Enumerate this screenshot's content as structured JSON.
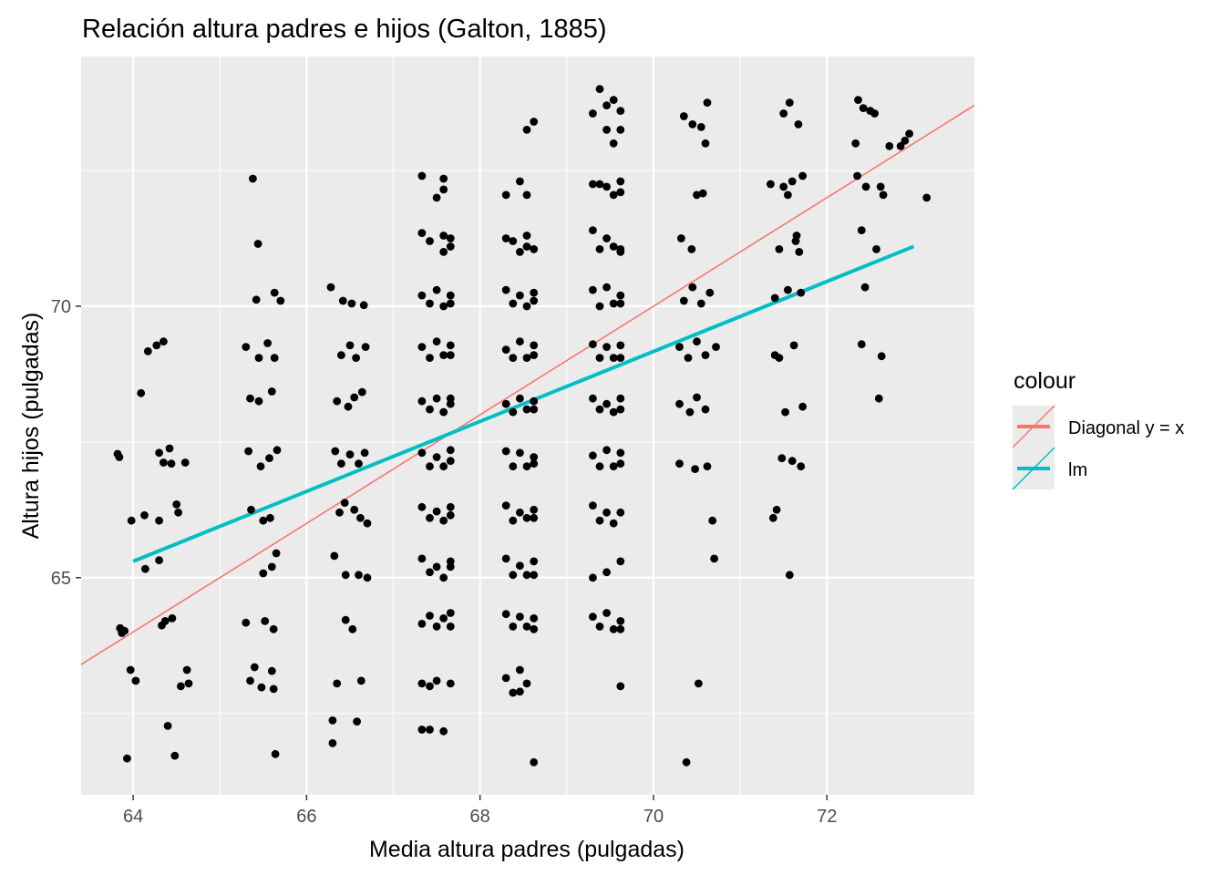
{
  "chart_data": {
    "type": "scatter",
    "title": "Relación altura padres e hijos (Galton, 1885)",
    "xlabel": "Media altura padres (pulgadas)",
    "ylabel": "Altura hijos (pulgadas)",
    "xlim": [
      63.4,
      73.7
    ],
    "ylim": [
      61.0,
      74.6
    ],
    "xticks": [
      64,
      66,
      68,
      70,
      72
    ],
    "yticks": [
      65,
      70
    ],
    "grid": true,
    "background": "#ebebeb",
    "point_color": "#000000",
    "legend": {
      "title": "colour",
      "position": "right",
      "entries": [
        {
          "label": "Diagonal y = x",
          "color": "#f8766d"
        },
        {
          "label": "lm",
          "color": "#00bfc4"
        }
      ]
    },
    "lines": [
      {
        "name": "Diagonal y = x",
        "color": "#f8766d",
        "x": [
          63.4,
          73.7
        ],
        "y": [
          63.4,
          73.7
        ]
      },
      {
        "name": "lm",
        "color": "#00bfc4",
        "x": [
          64.0,
          73.0
        ],
        "y": [
          65.3,
          71.1
        ]
      }
    ],
    "points": [
      [
        63.82,
        67.28
      ],
      [
        63.84,
        67.22
      ],
      [
        63.93,
        61.67
      ],
      [
        63.98,
        66.05
      ],
      [
        64.03,
        63.1
      ],
      [
        63.97,
        63.3
      ],
      [
        63.85,
        64.07
      ],
      [
        63.87,
        63.98
      ],
      [
        63.9,
        64.02
      ],
      [
        64.09,
        68.4
      ],
      [
        64.13,
        66.15
      ],
      [
        64.14,
        65.16
      ],
      [
        64.17,
        69.17
      ],
      [
        64.27,
        69.28
      ],
      [
        64.3,
        66.05
      ],
      [
        64.35,
        69.35
      ],
      [
        64.33,
        64.12
      ],
      [
        64.3,
        65.32
      ],
      [
        64.3,
        67.3
      ],
      [
        64.37,
        64.2
      ],
      [
        64.35,
        67.12
      ],
      [
        64.4,
        62.27
      ],
      [
        64.42,
        67.38
      ],
      [
        64.44,
        67.1
      ],
      [
        64.45,
        64.25
      ],
      [
        64.48,
        61.72
      ],
      [
        64.5,
        66.35
      ],
      [
        64.52,
        66.2
      ],
      [
        64.55,
        63.0
      ],
      [
        64.6,
        67.12
      ],
      [
        64.62,
        63.3
      ],
      [
        64.64,
        63.05
      ],
      [
        65.38,
        72.35
      ],
      [
        65.3,
        69.25
      ],
      [
        65.35,
        68.3
      ],
      [
        65.33,
        67.33
      ],
      [
        65.36,
        66.25
      ],
      [
        65.3,
        64.17
      ],
      [
        65.35,
        63.1
      ],
      [
        65.4,
        63.35
      ],
      [
        65.42,
        70.12
      ],
      [
        65.44,
        71.15
      ],
      [
        65.45,
        69.05
      ],
      [
        65.45,
        68.25
      ],
      [
        65.47,
        67.05
      ],
      [
        65.5,
        66.05
      ],
      [
        65.5,
        65.08
      ],
      [
        65.52,
        64.2
      ],
      [
        65.48,
        62.98
      ],
      [
        65.55,
        69.32
      ],
      [
        65.6,
        68.43
      ],
      [
        65.57,
        67.2
      ],
      [
        65.58,
        66.1
      ],
      [
        65.6,
        65.2
      ],
      [
        65.62,
        64.05
      ],
      [
        65.6,
        63.28
      ],
      [
        65.62,
        62.95
      ],
      [
        65.64,
        61.75
      ],
      [
        65.65,
        65.45
      ],
      [
        65.63,
        70.25
      ],
      [
        65.66,
        67.35
      ],
      [
        65.7,
        70.1
      ],
      [
        65.63,
        69.05
      ],
      [
        66.28,
        70.35
      ],
      [
        66.3,
        62.37
      ],
      [
        66.32,
        65.4
      ],
      [
        66.35,
        68.25
      ],
      [
        66.33,
        67.33
      ],
      [
        66.35,
        63.05
      ],
      [
        66.3,
        61.95
      ],
      [
        66.38,
        66.2
      ],
      [
        66.4,
        67.1
      ],
      [
        66.4,
        69.1
      ],
      [
        66.42,
        70.1
      ],
      [
        66.44,
        66.38
      ],
      [
        66.45,
        65.05
      ],
      [
        66.45,
        64.22
      ],
      [
        66.48,
        68.15
      ],
      [
        66.5,
        69.28
      ],
      [
        66.5,
        67.27
      ],
      [
        66.52,
        70.05
      ],
      [
        66.53,
        64.05
      ],
      [
        66.55,
        66.25
      ],
      [
        66.55,
        68.32
      ],
      [
        66.57,
        69.05
      ],
      [
        66.58,
        62.35
      ],
      [
        66.6,
        67.1
      ],
      [
        66.6,
        65.05
      ],
      [
        66.62,
        66.1
      ],
      [
        66.63,
        63.1
      ],
      [
        66.64,
        68.42
      ],
      [
        66.66,
        70.02
      ],
      [
        66.67,
        67.3
      ],
      [
        66.68,
        69.25
      ],
      [
        66.7,
        65.0
      ],
      [
        66.7,
        66.0
      ],
      [
        67.33,
        72.4
      ],
      [
        67.33,
        71.35
      ],
      [
        67.33,
        70.2
      ],
      [
        67.33,
        69.25
      ],
      [
        67.33,
        68.25
      ],
      [
        67.33,
        67.3
      ],
      [
        67.33,
        66.3
      ],
      [
        67.33,
        65.35
      ],
      [
        67.33,
        64.15
      ],
      [
        67.33,
        63.05
      ],
      [
        67.33,
        62.2
      ],
      [
        67.42,
        71.2
      ],
      [
        67.42,
        70.05
      ],
      [
        67.42,
        69.05
      ],
      [
        67.42,
        68.1
      ],
      [
        67.42,
        67.05
      ],
      [
        67.42,
        66.1
      ],
      [
        67.42,
        65.1
      ],
      [
        67.42,
        64.3
      ],
      [
        67.42,
        63.0
      ],
      [
        67.42,
        62.2
      ],
      [
        67.5,
        72.0
      ],
      [
        67.5,
        70.3
      ],
      [
        67.5,
        69.35
      ],
      [
        67.5,
        68.3
      ],
      [
        67.5,
        67.22
      ],
      [
        67.5,
        66.22
      ],
      [
        67.5,
        65.2
      ],
      [
        67.5,
        64.1
      ],
      [
        67.5,
        63.1
      ],
      [
        67.58,
        72.35
      ],
      [
        67.58,
        71.3
      ],
      [
        67.58,
        70.0
      ],
      [
        67.58,
        69.1
      ],
      [
        67.58,
        68.05
      ],
      [
        67.58,
        67.05
      ],
      [
        67.58,
        66.05
      ],
      [
        67.58,
        65.0
      ],
      [
        67.58,
        64.25
      ],
      [
        67.58,
        62.17
      ],
      [
        67.58,
        72.15
      ],
      [
        67.58,
        71.0
      ],
      [
        67.66,
        71.25
      ],
      [
        67.66,
        70.2
      ],
      [
        67.66,
        69.28
      ],
      [
        67.66,
        68.2
      ],
      [
        67.66,
        67.35
      ],
      [
        67.66,
        66.3
      ],
      [
        67.66,
        65.3
      ],
      [
        67.66,
        64.35
      ],
      [
        67.66,
        63.05
      ],
      [
        67.66,
        71.1
      ],
      [
        67.66,
        70.05
      ],
      [
        67.66,
        69.1
      ],
      [
        67.66,
        68.3
      ],
      [
        67.66,
        67.15
      ],
      [
        67.66,
        66.15
      ],
      [
        67.66,
        65.2
      ],
      [
        67.66,
        64.1
      ],
      [
        68.3,
        72.05
      ],
      [
        68.3,
        71.25
      ],
      [
        68.3,
        70.3
      ],
      [
        68.3,
        69.2
      ],
      [
        68.3,
        68.2
      ],
      [
        68.3,
        67.33
      ],
      [
        68.3,
        66.33
      ],
      [
        68.3,
        65.35
      ],
      [
        68.3,
        64.33
      ],
      [
        68.3,
        63.15
      ],
      [
        68.38,
        71.2
      ],
      [
        68.38,
        70.05
      ],
      [
        68.38,
        69.05
      ],
      [
        68.38,
        68.05
      ],
      [
        68.38,
        67.05
      ],
      [
        68.38,
        66.05
      ],
      [
        68.38,
        65.05
      ],
      [
        68.38,
        64.1
      ],
      [
        68.38,
        62.88
      ],
      [
        68.46,
        72.3
      ],
      [
        68.46,
        71.0
      ],
      [
        68.46,
        70.2
      ],
      [
        68.46,
        69.35
      ],
      [
        68.46,
        68.3
      ],
      [
        68.46,
        67.3
      ],
      [
        68.46,
        66.2
      ],
      [
        68.46,
        65.22
      ],
      [
        68.46,
        64.28
      ],
      [
        68.46,
        63.3
      ],
      [
        68.46,
        62.9
      ],
      [
        68.54,
        73.25
      ],
      [
        68.54,
        71.3
      ],
      [
        68.54,
        70.0
      ],
      [
        68.54,
        69.05
      ],
      [
        68.54,
        68.1
      ],
      [
        68.54,
        67.05
      ],
      [
        68.54,
        66.1
      ],
      [
        68.54,
        65.05
      ],
      [
        68.54,
        64.1
      ],
      [
        68.54,
        63.05
      ],
      [
        68.54,
        72.05
      ],
      [
        68.54,
        71.1
      ],
      [
        68.62,
        73.4
      ],
      [
        68.62,
        71.05
      ],
      [
        68.62,
        70.25
      ],
      [
        68.62,
        69.28
      ],
      [
        68.62,
        68.25
      ],
      [
        68.62,
        67.22
      ],
      [
        68.62,
        66.25
      ],
      [
        68.62,
        65.3
      ],
      [
        68.62,
        64.25
      ],
      [
        68.62,
        61.6
      ],
      [
        68.62,
        70.1
      ],
      [
        68.62,
        69.1
      ],
      [
        68.62,
        68.1
      ],
      [
        68.62,
        67.1
      ],
      [
        68.62,
        66.1
      ],
      [
        68.62,
        65.05
      ],
      [
        68.62,
        64.05
      ],
      [
        69.3,
        73.55
      ],
      [
        69.3,
        72.25
      ],
      [
        69.3,
        71.4
      ],
      [
        69.3,
        70.3
      ],
      [
        69.3,
        69.3
      ],
      [
        69.3,
        68.3
      ],
      [
        69.3,
        67.25
      ],
      [
        69.3,
        66.33
      ],
      [
        69.3,
        65.0
      ],
      [
        69.3,
        64.28
      ],
      [
        69.38,
        74.0
      ],
      [
        69.38,
        72.25
      ],
      [
        69.38,
        71.05
      ],
      [
        69.38,
        70.0
      ],
      [
        69.38,
        69.05
      ],
      [
        69.38,
        68.1
      ],
      [
        69.38,
        67.05
      ],
      [
        69.38,
        66.05
      ],
      [
        69.38,
        64.1
      ],
      [
        69.46,
        73.7
      ],
      [
        69.46,
        72.2
      ],
      [
        69.46,
        71.25
      ],
      [
        69.46,
        70.35
      ],
      [
        69.46,
        69.25
      ],
      [
        69.46,
        68.2
      ],
      [
        69.46,
        67.35
      ],
      [
        69.46,
        66.2
      ],
      [
        69.46,
        65.1
      ],
      [
        69.46,
        64.35
      ],
      [
        69.46,
        73.25
      ],
      [
        69.54,
        73.8
      ],
      [
        69.54,
        72.05
      ],
      [
        69.54,
        71.1
      ],
      [
        69.54,
        70.05
      ],
      [
        69.54,
        69.05
      ],
      [
        69.54,
        68.05
      ],
      [
        69.54,
        67.05
      ],
      [
        69.54,
        66.0
      ],
      [
        69.54,
        64.05
      ],
      [
        69.54,
        73.0
      ],
      [
        69.62,
        73.6
      ],
      [
        69.62,
        72.3
      ],
      [
        69.62,
        71.0
      ],
      [
        69.62,
        70.2
      ],
      [
        69.62,
        69.28
      ],
      [
        69.62,
        68.3
      ],
      [
        69.62,
        67.3
      ],
      [
        69.62,
        66.2
      ],
      [
        69.62,
        65.3
      ],
      [
        69.62,
        64.2
      ],
      [
        69.62,
        63.0
      ],
      [
        69.62,
        72.1
      ],
      [
        69.62,
        71.05
      ],
      [
        69.62,
        70.05
      ],
      [
        69.62,
        69.05
      ],
      [
        69.62,
        68.1
      ],
      [
        69.62,
        67.1
      ],
      [
        69.62,
        64.05
      ],
      [
        69.62,
        73.25
      ],
      [
        70.3,
        69.25
      ],
      [
        70.3,
        68.2
      ],
      [
        70.3,
        67.1
      ],
      [
        70.32,
        71.25
      ],
      [
        70.35,
        70.1
      ],
      [
        70.35,
        73.5
      ],
      [
        70.38,
        61.6
      ],
      [
        70.4,
        69.05
      ],
      [
        70.42,
        68.05
      ],
      [
        70.44,
        71.05
      ],
      [
        70.45,
        70.35
      ],
      [
        70.45,
        73.35
      ],
      [
        70.48,
        67.0
      ],
      [
        70.5,
        69.35
      ],
      [
        70.5,
        68.32
      ],
      [
        70.5,
        72.05
      ],
      [
        70.52,
        63.05
      ],
      [
        70.55,
        70.05
      ],
      [
        70.55,
        73.3
      ],
      [
        70.57,
        72.08
      ],
      [
        70.6,
        73.0
      ],
      [
        70.6,
        69.1
      ],
      [
        70.6,
        68.1
      ],
      [
        70.62,
        67.05
      ],
      [
        70.62,
        73.75
      ],
      [
        70.65,
        70.25
      ],
      [
        70.68,
        66.05
      ],
      [
        70.7,
        65.35
      ],
      [
        70.72,
        69.25
      ],
      [
        71.35,
        72.25
      ],
      [
        71.38,
        66.1
      ],
      [
        71.4,
        69.1
      ],
      [
        71.4,
        70.15
      ],
      [
        71.42,
        66.25
      ],
      [
        71.45,
        71.05
      ],
      [
        71.45,
        69.05
      ],
      [
        71.48,
        67.2
      ],
      [
        71.5,
        73.55
      ],
      [
        71.5,
        72.2
      ],
      [
        71.52,
        68.05
      ],
      [
        71.55,
        70.3
      ],
      [
        71.55,
        72.05
      ],
      [
        71.57,
        65.05
      ],
      [
        71.57,
        73.75
      ],
      [
        71.6,
        67.15
      ],
      [
        71.6,
        72.3
      ],
      [
        71.62,
        69.28
      ],
      [
        71.64,
        71.2
      ],
      [
        71.65,
        71.3
      ],
      [
        71.67,
        73.35
      ],
      [
        71.68,
        71.0
      ],
      [
        71.7,
        70.25
      ],
      [
        71.7,
        67.05
      ],
      [
        71.72,
        68.15
      ],
      [
        71.72,
        72.4
      ],
      [
        72.33,
        73.0
      ],
      [
        72.35,
        72.4
      ],
      [
        72.36,
        73.8
      ],
      [
        72.4,
        71.4
      ],
      [
        72.4,
        69.3
      ],
      [
        72.42,
        73.65
      ],
      [
        72.44,
        70.35
      ],
      [
        72.45,
        72.2
      ],
      [
        72.5,
        73.6
      ],
      [
        72.55,
        73.55
      ],
      [
        72.57,
        71.05
      ],
      [
        72.6,
        68.3
      ],
      [
        72.62,
        72.2
      ],
      [
        72.63,
        69.08
      ],
      [
        72.65,
        72.05
      ],
      [
        72.72,
        72.95
      ],
      [
        72.85,
        72.95
      ],
      [
        72.9,
        73.05
      ],
      [
        72.95,
        73.18
      ],
      [
        73.15,
        72.0
      ]
    ]
  }
}
